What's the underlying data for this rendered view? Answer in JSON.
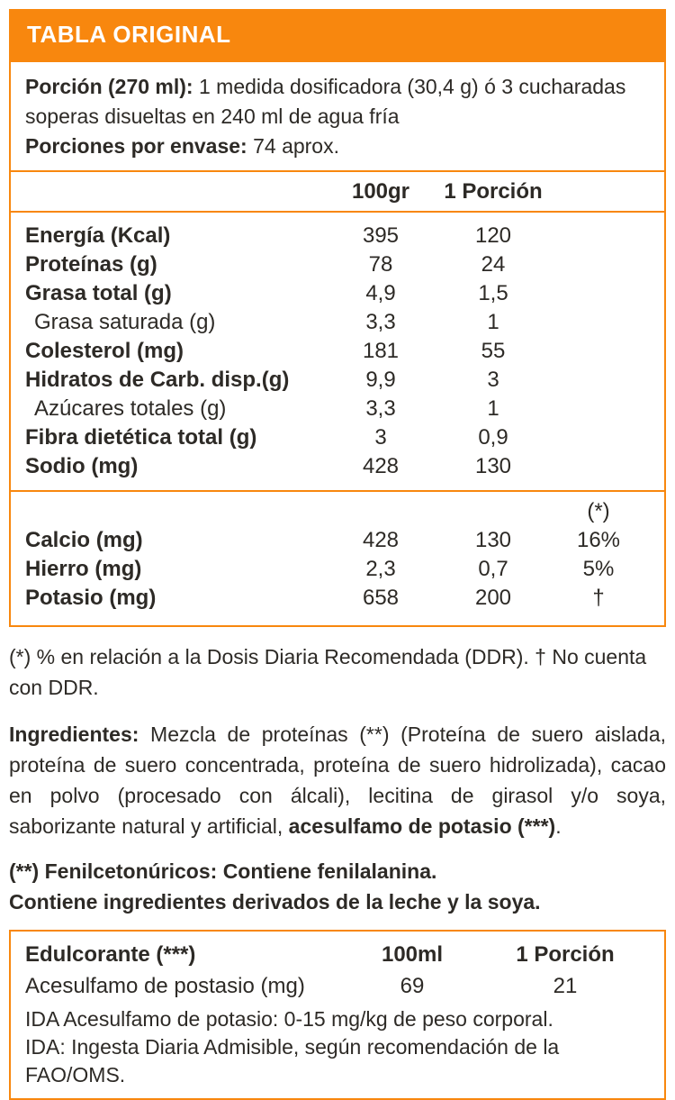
{
  "page": {
    "accent_color": "#F8870E",
    "text_color": "#2d2a26",
    "background": "#ffffff"
  },
  "title_band": {
    "label": "TABLA ORIGINAL"
  },
  "portion_info": {
    "label1": "Porción (270 ml):",
    "text1": " 1 medida dosificadora (30,4 g) ó 3 cucharadas soperas disueltas en 240 ml de agua fría",
    "label2": "Porciones por envase:",
    "text2": " 74 aprox."
  },
  "main_table": {
    "col_headers": {
      "per100": "100gr",
      "per_portion": "1 Porción"
    },
    "rows": [
      {
        "label": "Energía (Kcal)",
        "per100": "395",
        "portion": "120"
      },
      {
        "label": "Proteínas (g)",
        "per100": "78",
        "portion": "24"
      },
      {
        "label": "Grasa total (g)",
        "per100": "4,9",
        "portion": "1,5"
      },
      {
        "label": "Grasa saturada (g)",
        "per100": "3,3",
        "portion": "1"
      },
      {
        "label": "Colesterol (mg)",
        "per100": "181",
        "portion": "55"
      },
      {
        "label": "Hidratos de Carb. disp.(g)",
        "per100": "9,9",
        "portion": "3"
      },
      {
        "label": "Azúcares totales (g)",
        "per100": "3,3",
        "portion": "1"
      },
      {
        "label": "Fibra dietética total (g)",
        "per100": "3",
        "portion": "0,9"
      },
      {
        "label": "Sodio (mg)",
        "per100": "428",
        "portion": "130"
      }
    ],
    "ddr_header": "(*)",
    "ddr_rows": [
      {
        "label": "Calcio (mg)",
        "per100": "428",
        "portion": "130",
        "ddr": "16%"
      },
      {
        "label": "Hierro (mg)",
        "per100": "2,3",
        "portion": "0,7",
        "ddr": "5%"
      },
      {
        "label": "Potasio (mg)",
        "per100": "658",
        "portion": "200",
        "ddr": "†"
      }
    ]
  },
  "footnote": "(*) % en relación a la Dosis Diaria Recomendada (DDR). † No cuenta con DDR.",
  "ingredients": {
    "label": "Ingredientes:",
    "text": " Mezcla de proteínas (**) (Proteína de suero aislada, proteína de suero concentrada, proteína de suero hidrolizada), cacao en polvo (procesado con álcali), lecitina de girasol y/o soya, saborizante natural y artificial, ",
    "bold_tail": "acesulfamo de potasio (***)",
    "period": "."
  },
  "phenyl": {
    "line1": "(**) Fenilcetonúricos: Contiene fenilalanina.",
    "line2": "Contiene ingredientes derivados de la leche y la soya."
  },
  "sweetener_table": {
    "title": "Edulcorante (***)",
    "col_headers": {
      "per100": "100ml",
      "per_portion": "1 Porción"
    },
    "row": {
      "label": "Acesulfamo de postasio (mg)",
      "per100": "69",
      "portion": "21"
    },
    "notes": {
      "line1": "IDA Acesulfamo de potasio: 0-15 mg/kg de peso corporal.",
      "line2": "IDA: Ingesta Diaria Admisible, según recomendación de la FAO/OMS."
    }
  }
}
